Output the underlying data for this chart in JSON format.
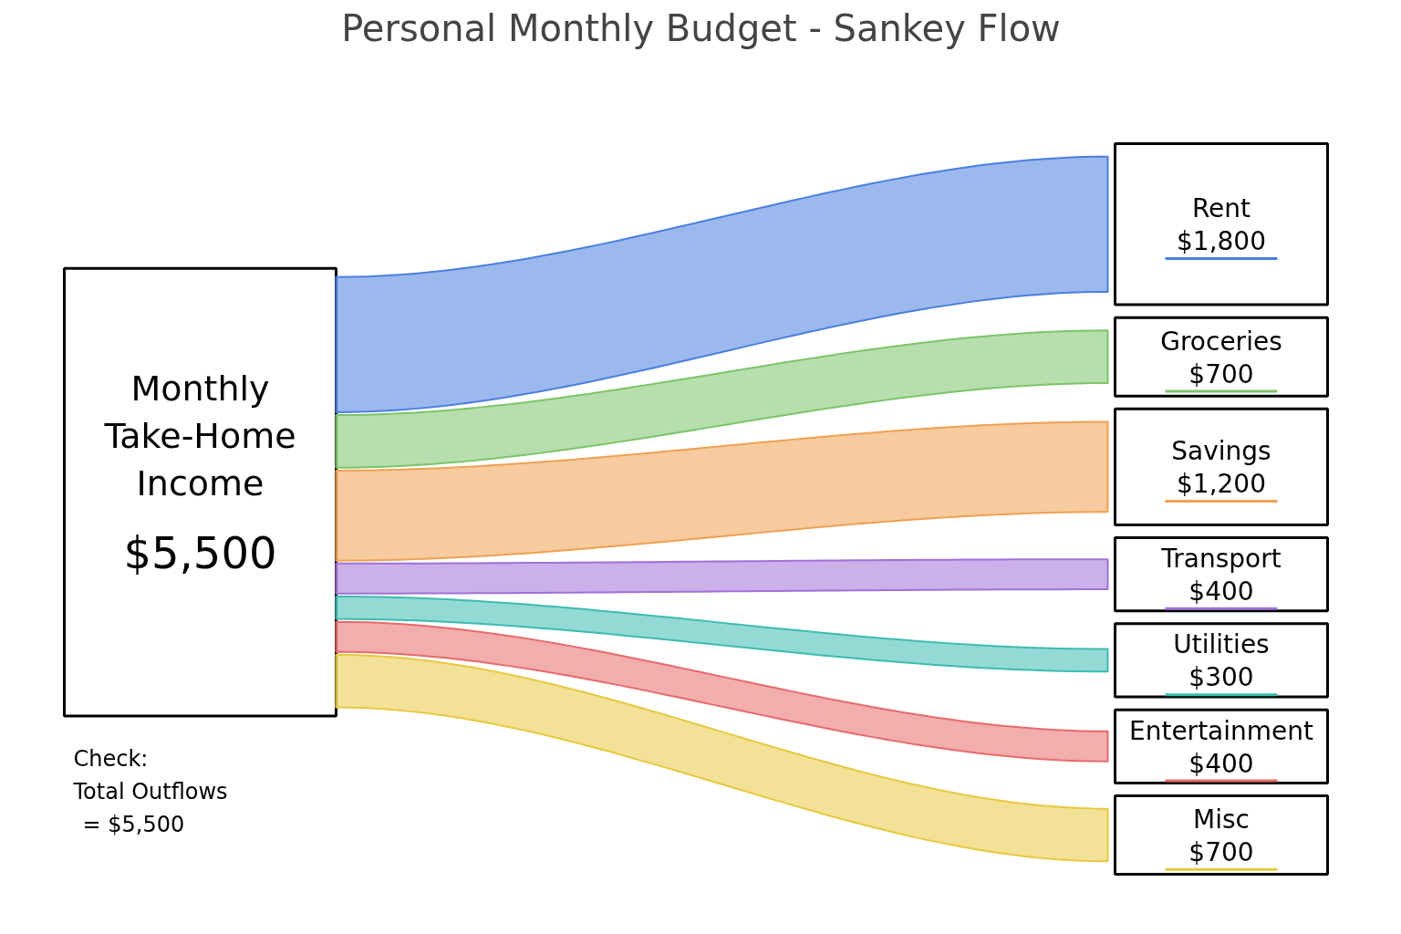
{
  "chart_data": {
    "type": "other",
    "title": "Personal Monthly Budget - Sankey Flow",
    "categories": [
      "Rent",
      "Groceries",
      "Savings",
      "Transport",
      "Utilities",
      "Entertainment",
      "Misc"
    ],
    "values": [
      1800,
      700,
      1200,
      400,
      300,
      400,
      700
    ],
    "value_labels": [
      "$1,800",
      "$700",
      "$1,200",
      "$400",
      "$300",
      "$400",
      "$700"
    ],
    "colors": [
      "#4a7fe0",
      "#7cc46a",
      "#f0a050",
      "#a070d8",
      "#3cbcb0",
      "#e86a6a",
      "#e8c840"
    ],
    "annotations": [
      "Monthly Take-Home Income",
      "$5,500",
      "Check:",
      "Total Outflows",
      "= $5,500"
    ]
  }
}
